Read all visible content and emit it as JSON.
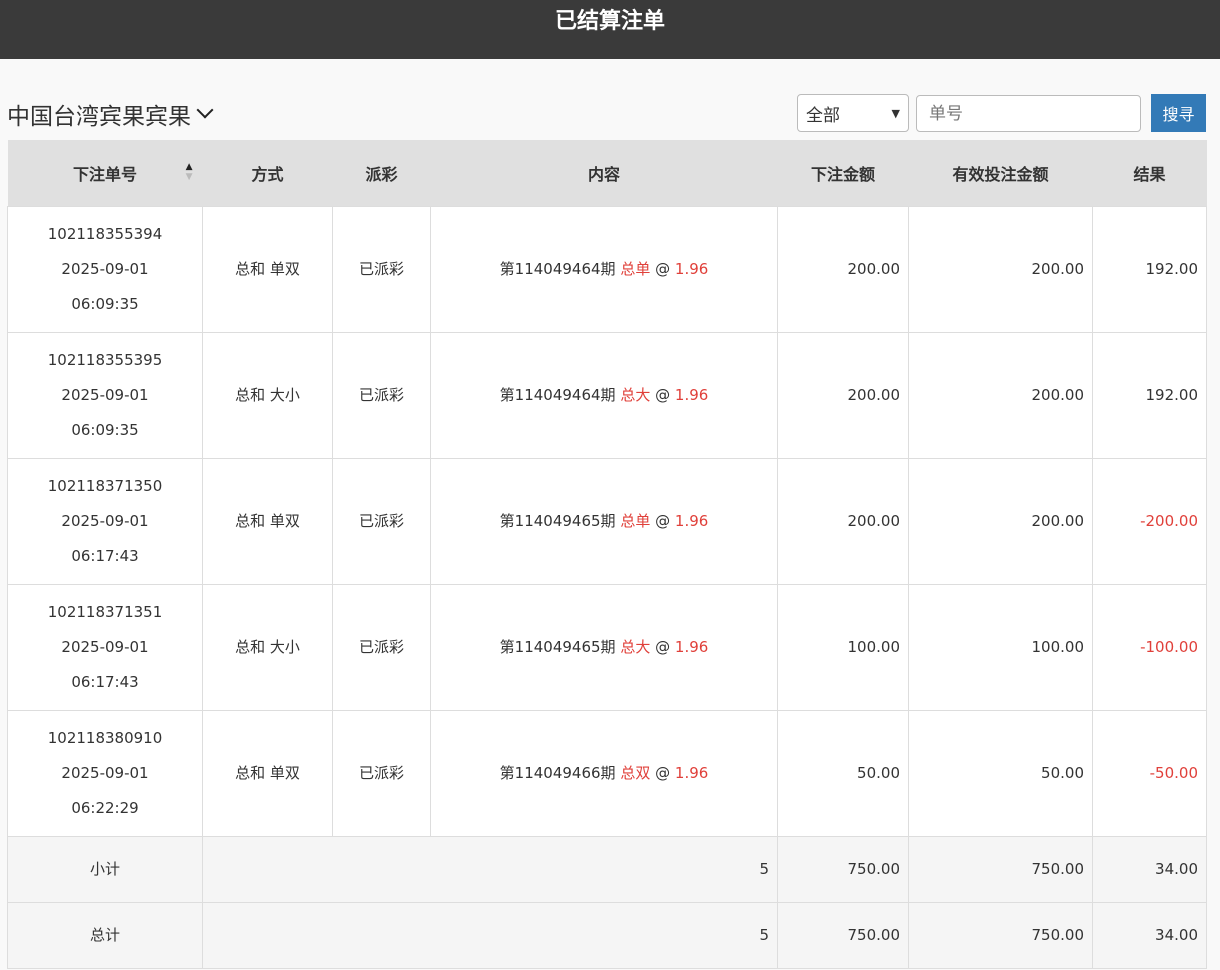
{
  "header": {
    "title": "已结算注单"
  },
  "toolbar": {
    "lottery": "中国台湾宾果宾果",
    "filter_value": "全部",
    "search_placeholder": "单号",
    "search_label": "搜寻"
  },
  "table": {
    "columns": [
      "下注单号",
      "方式",
      "派彩",
      "内容",
      "下注金额",
      "有效投注金额",
      "结果"
    ],
    "rows": [
      {
        "id": "102118355394",
        "date": "2025-09-01",
        "time": "06:09:35",
        "method": "总和 单双",
        "payout": "已派彩",
        "period": "第114049464期",
        "pick": "总单",
        "at": "@",
        "odds": "1.96",
        "amount": "200.00",
        "valid": "200.00",
        "result": "192.00",
        "negative": false
      },
      {
        "id": "102118355395",
        "date": "2025-09-01",
        "time": "06:09:35",
        "method": "总和 大小",
        "payout": "已派彩",
        "period": "第114049464期",
        "pick": "总大",
        "at": "@",
        "odds": "1.96",
        "amount": "200.00",
        "valid": "200.00",
        "result": "192.00",
        "negative": false
      },
      {
        "id": "102118371350",
        "date": "2025-09-01",
        "time": "06:17:43",
        "method": "总和 单双",
        "payout": "已派彩",
        "period": "第114049465期",
        "pick": "总单",
        "at": "@",
        "odds": "1.96",
        "amount": "200.00",
        "valid": "200.00",
        "result": "-200.00",
        "negative": true
      },
      {
        "id": "102118371351",
        "date": "2025-09-01",
        "time": "06:17:43",
        "method": "总和 大小",
        "payout": "已派彩",
        "period": "第114049465期",
        "pick": "总大",
        "at": "@",
        "odds": "1.96",
        "amount": "100.00",
        "valid": "100.00",
        "result": "-100.00",
        "negative": true
      },
      {
        "id": "102118380910",
        "date": "2025-09-01",
        "time": "06:22:29",
        "method": "总和 单双",
        "payout": "已派彩",
        "period": "第114049466期",
        "pick": "总双",
        "at": "@",
        "odds": "1.96",
        "amount": "50.00",
        "valid": "50.00",
        "result": "-50.00",
        "negative": true
      }
    ],
    "subtotal": {
      "label": "小计",
      "count": "5",
      "amount": "750.00",
      "valid": "750.00",
      "result": "34.00"
    },
    "total": {
      "label": "总计",
      "count": "5",
      "amount": "750.00",
      "valid": "750.00",
      "result": "34.00"
    }
  },
  "colors": {
    "header_bg": "#3a3a3a",
    "accent": "#337ab7",
    "negative": "#e0403a"
  }
}
